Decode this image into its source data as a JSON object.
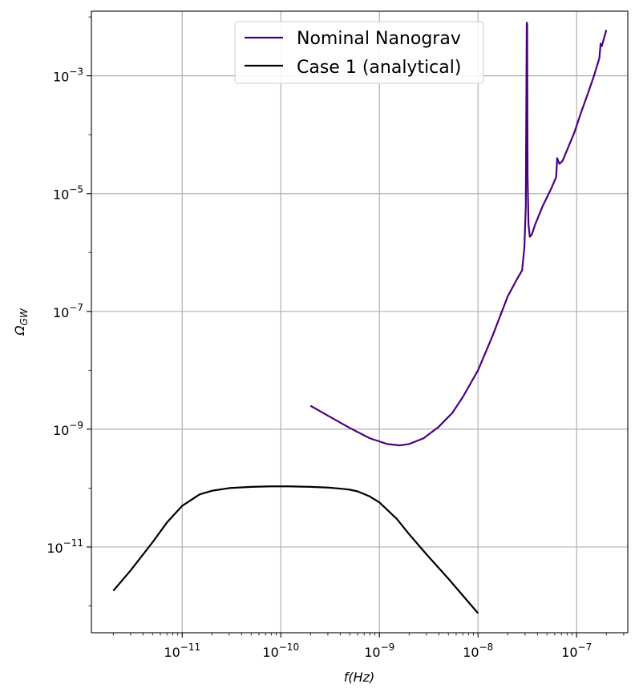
{
  "chart_data": {
    "type": "line",
    "title": "",
    "xscale": "log",
    "yscale": "log",
    "xlim": [
      1.2e-12,
      3.3e-07
    ],
    "ylim": [
      3.5e-13,
      0.0125
    ],
    "xlabel": "f(Hz)",
    "ylabel": "ΩGW",
    "ylabel_main": "Ω",
    "ylabel_sub": "GW",
    "grid": true,
    "legend_position": "top-center",
    "x_major_ticks": [
      {
        "value": 1e-11,
        "base": "10",
        "exp": "−11"
      },
      {
        "value": 1e-10,
        "base": "10",
        "exp": "−10"
      },
      {
        "value": 1e-09,
        "base": "10",
        "exp": "−9"
      },
      {
        "value": 1e-08,
        "base": "10",
        "exp": "−8"
      },
      {
        "value": 1e-07,
        "base": "10",
        "exp": "−7"
      }
    ],
    "y_major_ticks": [
      {
        "value": 1e-11,
        "base": "10",
        "exp": "−11"
      },
      {
        "value": 1e-09,
        "base": "10",
        "exp": "−9"
      },
      {
        "value": 1e-07,
        "base": "10",
        "exp": "−7"
      },
      {
        "value": 1e-05,
        "base": "10",
        "exp": "−5"
      },
      {
        "value": 0.001,
        "base": "10",
        "exp": "−3"
      }
    ],
    "series": [
      {
        "name": "Nominal Nanograv",
        "color": "#4b0082",
        "points": [
          [
            2e-10,
            2.5e-09
          ],
          [
            3e-10,
            1.7e-09
          ],
          [
            5e-10,
            1.05e-09
          ],
          [
            8e-10,
            7e-10
          ],
          [
            1.2e-09,
            5.6e-10
          ],
          [
            1.6e-09,
            5.3e-10
          ],
          [
            2e-09,
            5.6e-10
          ],
          [
            2.8e-09,
            7e-10
          ],
          [
            4e-09,
            1.1e-09
          ],
          [
            5.5e-09,
            1.9e-09
          ],
          [
            7e-09,
            3.5e-09
          ],
          [
            1e-08,
            1e-08
          ],
          [
            1.4e-08,
            3.8e-08
          ],
          [
            2e-08,
            1.8e-07
          ],
          [
            2.5e-08,
            3.6e-07
          ],
          [
            2.8e-08,
            5e-07
          ],
          [
            2.95e-08,
            1.2e-06
          ],
          [
            3.05e-08,
            6e-06
          ],
          [
            3.12e-08,
            0.008
          ],
          [
            3.15e-08,
            0.0075
          ],
          [
            3.18e-08,
            2e-05
          ],
          [
            3.25e-08,
            3e-06
          ],
          [
            3.35e-08,
            1.85e-06
          ],
          [
            3.5e-08,
            2e-06
          ],
          [
            3.8e-08,
            3e-06
          ],
          [
            4.5e-08,
            6e-06
          ],
          [
            5.5e-08,
            1.2e-05
          ],
          [
            6.2e-08,
            1.9e-05
          ],
          [
            6.35e-08,
            4e-05
          ],
          [
            6.5e-08,
            3.6e-05
          ],
          [
            6.7e-08,
            3.2e-05
          ],
          [
            7.2e-08,
            3.6e-05
          ],
          [
            8e-08,
            5.5e-05
          ],
          [
            9.5e-08,
            0.00011
          ],
          [
            1.1e-07,
            0.00023
          ],
          [
            1.3e-07,
            0.0005
          ],
          [
            1.5e-07,
            0.001
          ],
          [
            1.7e-07,
            0.002
          ],
          [
            1.75e-07,
            0.0035
          ],
          [
            1.8e-07,
            0.0032
          ],
          [
            2e-07,
            0.006
          ]
        ]
      },
      {
        "name": "Case 1 (analytical)",
        "color": "#000000",
        "points": [
          [
            2e-12,
            1.8e-12
          ],
          [
            3e-12,
            4e-12
          ],
          [
            5e-12,
            1.2e-11
          ],
          [
            7e-12,
            2.6e-11
          ],
          [
            1e-11,
            5e-11
          ],
          [
            1.5e-11,
            7.8e-11
          ],
          [
            2e-11,
            9e-11
          ],
          [
            3e-11,
            1e-10
          ],
          [
            5e-11,
            1.05e-10
          ],
          [
            8e-11,
            1.07e-10
          ],
          [
            1.2e-10,
            1.07e-10
          ],
          [
            2e-10,
            1.05e-10
          ],
          [
            3e-10,
            1.02e-10
          ],
          [
            4e-10,
            9.8e-11
          ],
          [
            5e-10,
            9.4e-11
          ],
          [
            6e-10,
            8.8e-11
          ],
          [
            8e-10,
            7.2e-11
          ],
          [
            1e-09,
            5.7e-11
          ],
          [
            1.5e-09,
            3e-11
          ],
          [
            2e-09,
            1.65e-11
          ],
          [
            3e-09,
            7.5e-12
          ],
          [
            5e-09,
            2.9e-12
          ],
          [
            7e-09,
            1.5e-12
          ],
          [
            1e-08,
            7.5e-13
          ]
        ]
      }
    ]
  }
}
